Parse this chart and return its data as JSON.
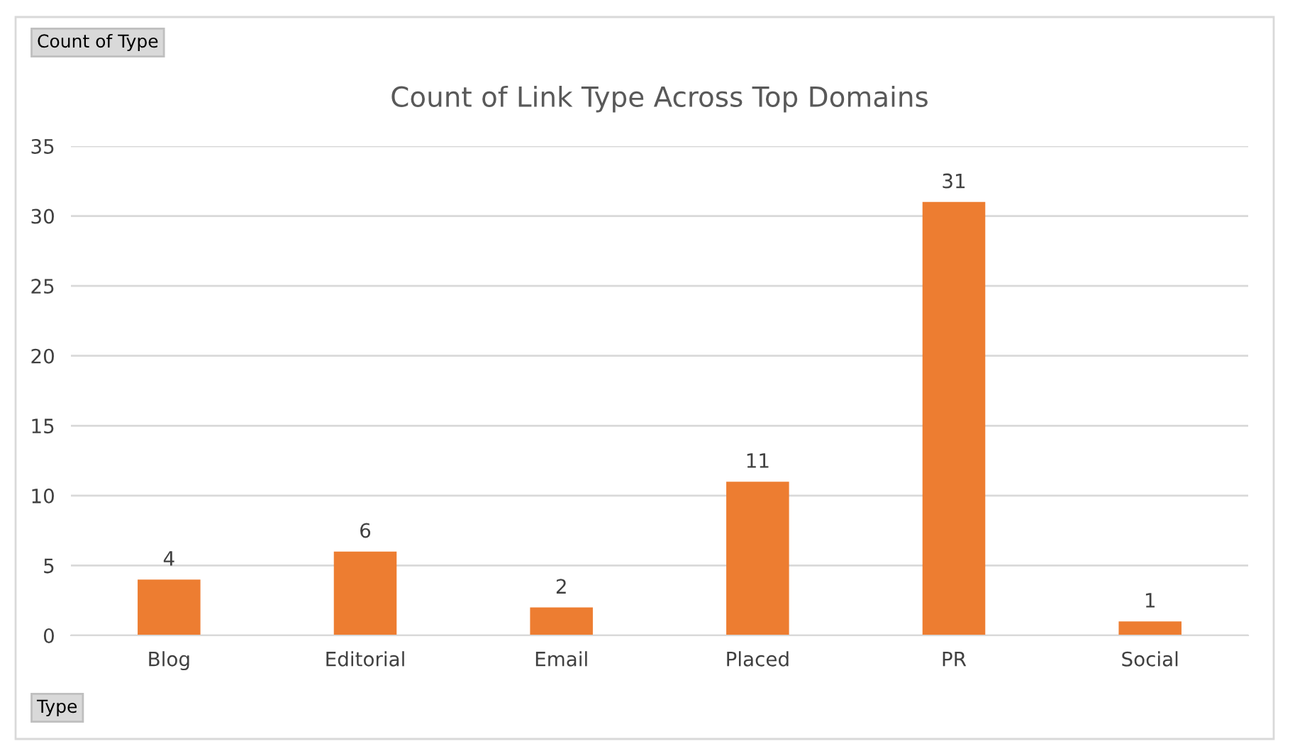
{
  "chart_data": {
    "type": "bar",
    "title": "Count of Link Type Across Top Domains",
    "categories": [
      "Blog",
      "Editorial",
      "Email",
      "Placed",
      "PR",
      "Social"
    ],
    "values": [
      4,
      6,
      2,
      11,
      31,
      1
    ],
    "color": "#ed7d31",
    "ylim": [
      0,
      35
    ],
    "yticks": [
      0,
      5,
      10,
      15,
      20,
      25,
      30,
      35
    ],
    "grid": "y",
    "data_labels": true,
    "annotations": [
      "Count of Type",
      "Type"
    ]
  }
}
